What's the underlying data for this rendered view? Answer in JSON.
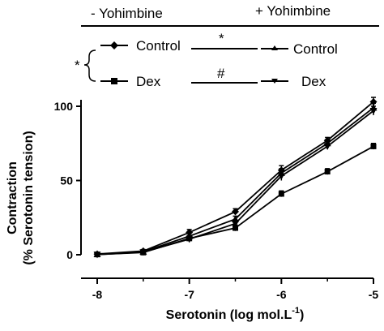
{
  "legend": {
    "without_label": "- Yohimbine",
    "with_label": "+ Yohimbine",
    "row1_left": "Control",
    "row1_right": "Control",
    "row1_sig": "*",
    "row2_left": "Dex",
    "row2_right": "Dex",
    "row2_sig": "#",
    "group_sig": "*"
  },
  "chart_data": {
    "type": "line",
    "xlabel": "Serotonin (log mol.L",
    "xlabel_sup": "-1",
    "xlabel_close": ")",
    "ylabel_line1": "Contraction",
    "ylabel_line2": "(% Serotonin tension)",
    "x": [
      -8,
      -7.5,
      -7,
      -6.5,
      -6,
      -5.5,
      -5
    ],
    "xticks": [
      "-8",
      "-7",
      "-6",
      "-5"
    ],
    "xtick_values": [
      -8,
      -7,
      -6,
      -5
    ],
    "yticks": [
      "0",
      "50",
      "100"
    ],
    "ytick_values": [
      0,
      50,
      100
    ],
    "xlim": [
      -8,
      -5
    ],
    "ylim": [
      0,
      110
    ],
    "grid": false,
    "series": [
      {
        "name": "Control",
        "group": "- Yohimbine",
        "marker": "diamond",
        "values": [
          0.5,
          2.5,
          15,
          29,
          57,
          77,
          103
        ],
        "err": [
          1,
          1,
          2,
          2,
          3,
          2,
          3
        ]
      },
      {
        "name": "Control",
        "group": "+ Yohimbine",
        "marker": "triangle-up",
        "values": [
          0.3,
          2.0,
          12.5,
          24,
          55,
          75,
          99
        ],
        "err": [
          1,
          1,
          2,
          2,
          3,
          2,
          3
        ]
      },
      {
        "name": "Dex",
        "group": "- Yohimbine",
        "marker": "square",
        "values": [
          0.2,
          1.5,
          11,
          18,
          41,
          56,
          73
        ],
        "err": [
          1,
          1,
          2,
          2,
          2,
          2,
          2
        ]
      },
      {
        "name": "Dex",
        "group": "+ Yohimbine",
        "marker": "triangle-down",
        "values": [
          0.1,
          1.8,
          10.5,
          21,
          53,
          73,
          97
        ],
        "err": [
          1,
          1,
          2,
          2,
          3,
          2,
          3
        ]
      }
    ]
  }
}
